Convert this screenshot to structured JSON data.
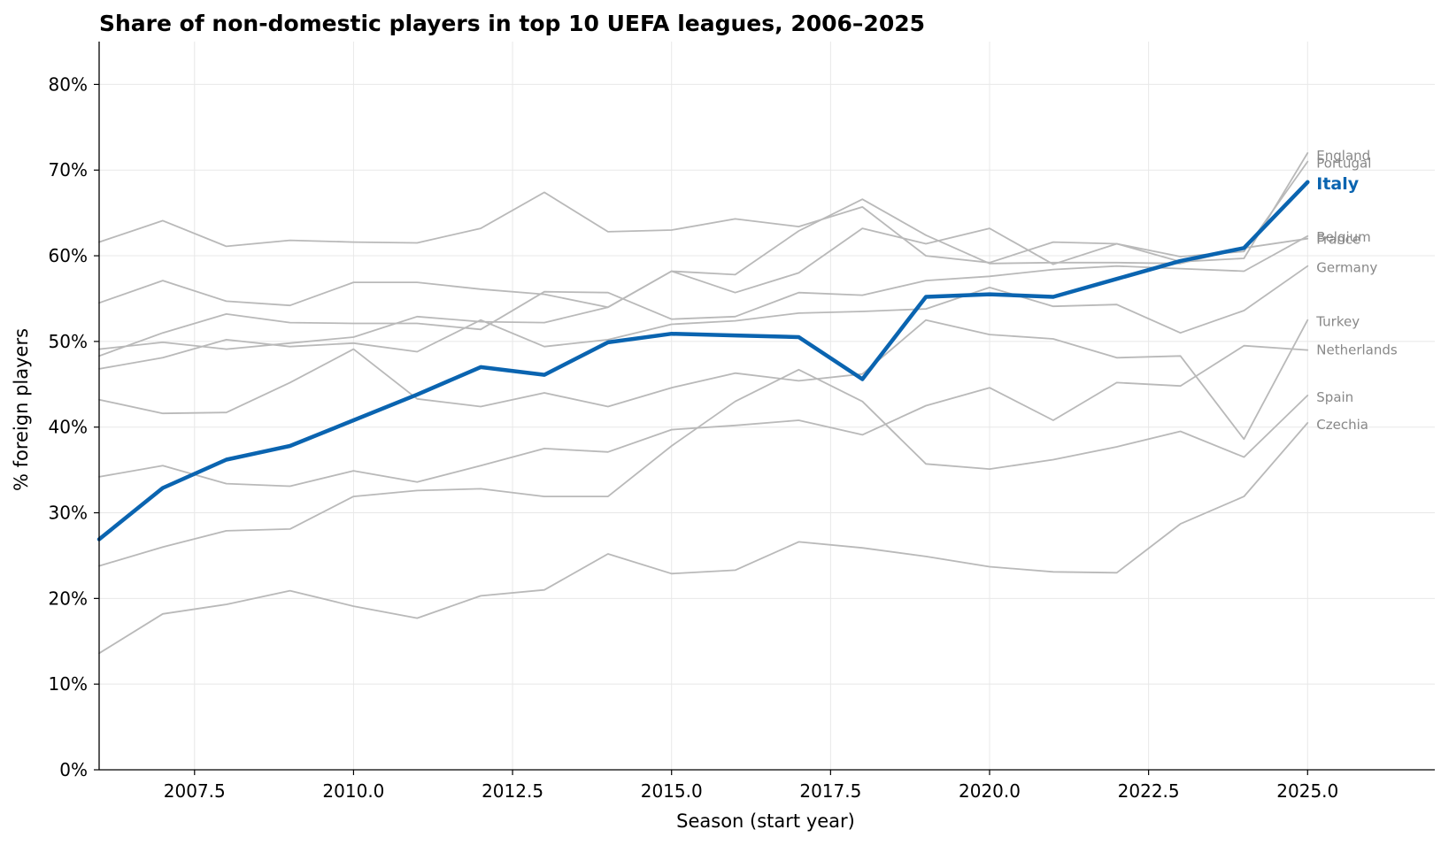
{
  "chart_data": {
    "type": "line",
    "title": "Share of non-domestic players in top 10 UEFA leagues, 2006–2025",
    "xlabel": "Season (start year)",
    "ylabel": "% foreign players",
    "xlim": [
      2006,
      2027
    ],
    "ylim": [
      0,
      85
    ],
    "x_ticks": [
      2007.5,
      2010.0,
      2012.5,
      2015.0,
      2017.5,
      2020.0,
      2022.5,
      2025.0
    ],
    "x_tick_labels": [
      "2007.5",
      "2010.0",
      "2012.5",
      "2015.0",
      "2017.5",
      "2020.0",
      "2022.5",
      "2025.0"
    ],
    "y_ticks": [
      0,
      10,
      20,
      30,
      40,
      50,
      60,
      70,
      80
    ],
    "y_tick_labels": [
      "0%",
      "10%",
      "20%",
      "30%",
      "40%",
      "50%",
      "60%",
      "70%",
      "80%"
    ],
    "grid": true,
    "x": [
      2006,
      2007,
      2008,
      2009,
      2010,
      2011,
      2012,
      2013,
      2014,
      2015,
      2016,
      2017,
      2018,
      2019,
      2020,
      2021,
      2022,
      2023,
      2024,
      2025
    ],
    "highlight": "Italy",
    "colors": {
      "highlight": "#0a64b0",
      "other": "#b9b9b9",
      "label_other": "#888888",
      "grid": "#e8e8e8",
      "axis": "#000000"
    },
    "series": [
      {
        "name": "England",
        "values": [
          61.6,
          64.1,
          61.1,
          61.8,
          61.6,
          61.5,
          63.2,
          67.4,
          62.8,
          63.0,
          64.3,
          63.4,
          65.7,
          60.0,
          59.2,
          61.6,
          61.4,
          59.3,
          59.7,
          72.0
        ]
      },
      {
        "name": "Portugal",
        "values": [
          54.5,
          57.1,
          54.7,
          54.2,
          56.9,
          56.9,
          56.1,
          55.5,
          54.0,
          58.2,
          55.7,
          58.0,
          63.2,
          61.4,
          63.2,
          59.0,
          61.4,
          59.9,
          60.5,
          71.0
        ]
      },
      {
        "name": "Italy",
        "values": [
          26.9,
          32.9,
          36.2,
          37.8,
          40.8,
          43.8,
          47.0,
          46.1,
          49.9,
          50.9,
          50.7,
          50.5,
          45.6,
          55.2,
          55.5,
          55.2,
          57.3,
          59.4,
          60.9,
          68.6
        ]
      },
      {
        "name": "Belgium",
        "values": [
          48.3,
          51.0,
          53.2,
          52.2,
          52.1,
          52.1,
          51.4,
          55.8,
          55.7,
          52.6,
          52.9,
          55.7,
          55.4,
          57.1,
          57.6,
          58.4,
          58.8,
          58.5,
          58.2,
          62.3
        ]
      },
      {
        "name": "France",
        "values": [
          49.1,
          49.9,
          49.1,
          49.8,
          50.5,
          52.9,
          52.3,
          52.2,
          54.0,
          58.2,
          57.8,
          62.9,
          66.6,
          62.4,
          59.1,
          59.2,
          59.2,
          59.1,
          60.9,
          62.0
        ]
      },
      {
        "name": "Germany",
        "values": [
          46.8,
          48.1,
          50.2,
          49.4,
          49.8,
          48.8,
          52.5,
          49.4,
          50.2,
          52.0,
          52.4,
          53.3,
          53.5,
          53.8,
          56.3,
          54.1,
          54.3,
          51.0,
          53.6,
          58.8
        ]
      },
      {
        "name": "Turkey",
        "values": [
          43.2,
          41.6,
          41.7,
          45.2,
          49.1,
          43.3,
          42.4,
          44.0,
          42.4,
          44.6,
          46.3,
          45.4,
          46.2,
          52.5,
          50.8,
          50.3,
          48.1,
          48.3,
          38.6,
          52.5
        ]
      },
      {
        "name": "Netherlands",
        "values": [
          34.2,
          35.5,
          33.4,
          33.1,
          34.9,
          33.6,
          35.5,
          37.5,
          37.1,
          39.7,
          40.2,
          40.8,
          39.1,
          42.5,
          44.6,
          40.8,
          45.2,
          44.8,
          49.5,
          49.0
        ]
      },
      {
        "name": "Spain",
        "values": [
          23.8,
          26.0,
          27.9,
          28.1,
          31.9,
          32.6,
          32.8,
          31.9,
          31.9,
          37.8,
          43.0,
          46.7,
          43.0,
          35.7,
          35.1,
          36.2,
          37.7,
          39.5,
          36.5,
          43.7
        ]
      },
      {
        "name": "Czechia",
        "values": [
          13.6,
          18.2,
          19.3,
          20.9,
          19.1,
          17.7,
          20.3,
          21.0,
          25.2,
          22.9,
          23.3,
          26.6,
          25.9,
          24.9,
          23.7,
          23.1,
          23.0,
          28.7,
          31.9,
          40.5
        ]
      }
    ],
    "end_labels": [
      {
        "name": "England",
        "label": "England",
        "at": 71.7
      },
      {
        "name": "Portugal",
        "label": "Portugal",
        "at": 70.8
      },
      {
        "name": "Italy",
        "label": "Italy",
        "at": 68.5
      },
      {
        "name": "Belgium",
        "label": "Belgium",
        "at": 62.2
      },
      {
        "name": "France",
        "label": "France",
        "at": 61.9
      },
      {
        "name": "Germany",
        "label": "Germany",
        "at": 58.6
      },
      {
        "name": "Turkey",
        "label": "Turkey",
        "at": 52.3
      },
      {
        "name": "Netherlands",
        "label": "Netherlands",
        "at": 49.0
      },
      {
        "name": "Spain",
        "label": "Spain",
        "at": 43.5
      },
      {
        "name": "Czechia",
        "label": "Czechia",
        "at": 40.3
      }
    ]
  }
}
